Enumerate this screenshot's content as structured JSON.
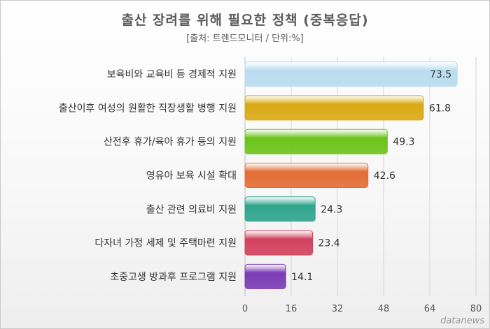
{
  "chart_data": {
    "type": "bar",
    "orientation": "horizontal",
    "title": "출산 장려를 위해 필요한 정책 (중복응답)",
    "subtitle": "[출처: 트렌드모니터 / 단위:%]",
    "categories": [
      "보육비와 교육비 등 경제적 지원",
      "출산이후 여성의 원활한 직장생활 병행 지원",
      "산전후 휴가/육아 휴가 등의 지원",
      "영유아 보육 시설 확대",
      "출산 관련 의료비 지원",
      "다자녀 가정 세제 및 주택마련 지원",
      "초중고생 방과후 프로그램 지원"
    ],
    "values": [
      73.5,
      61.8,
      49.3,
      42.6,
      24.3,
      23.4,
      14.1
    ],
    "value_labels": [
      "73.5",
      "61.8",
      "49.3",
      "42.6",
      "24.3",
      "23.4",
      "14.1"
    ],
    "colors": [
      "#b9dcef",
      "#d9aa12",
      "#6cc41a",
      "#e46d34",
      "#2fa58e",
      "#d2415e",
      "#7b3bb5"
    ],
    "xlim": [
      0,
      80
    ],
    "xticks": [
      "0",
      "16",
      "32",
      "48",
      "64",
      "80"
    ],
    "grid": true
  },
  "watermark": "datanews"
}
